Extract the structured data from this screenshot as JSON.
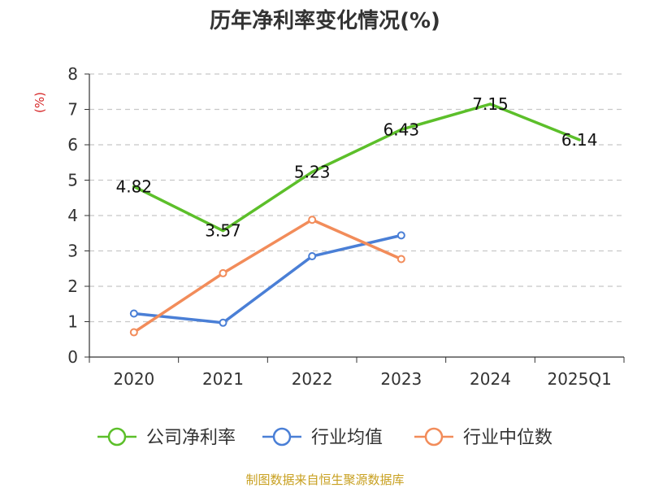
{
  "chart_data": {
    "type": "line",
    "title": "历年净利率变化情况(%)",
    "xlabel": "",
    "ylabel": "(%)",
    "categories": [
      "2020",
      "2021",
      "2022",
      "2023",
      "2024",
      "2025Q1"
    ],
    "ylim": [
      0,
      8
    ],
    "yticks": [
      0,
      1,
      2,
      3,
      4,
      5,
      6,
      7,
      8
    ],
    "grid": true,
    "legend_position": "bottom",
    "series": [
      {
        "name": "公司净利率",
        "color": "#5cbf2a",
        "values": [
          4.82,
          3.57,
          5.23,
          6.43,
          7.15,
          6.14
        ],
        "show_labels": true,
        "markers": false
      },
      {
        "name": "行业均值",
        "color": "#4a7fd6",
        "values": [
          1.23,
          0.97,
          2.85,
          3.44,
          null,
          null
        ],
        "show_labels": false,
        "markers": true
      },
      {
        "name": "行业中位数",
        "color": "#f28c5a",
        "values": [
          0.7,
          2.37,
          3.88,
          2.77,
          null,
          null
        ],
        "show_labels": false,
        "markers": true
      }
    ],
    "source": "制图数据来自恒生聚源数据库"
  }
}
